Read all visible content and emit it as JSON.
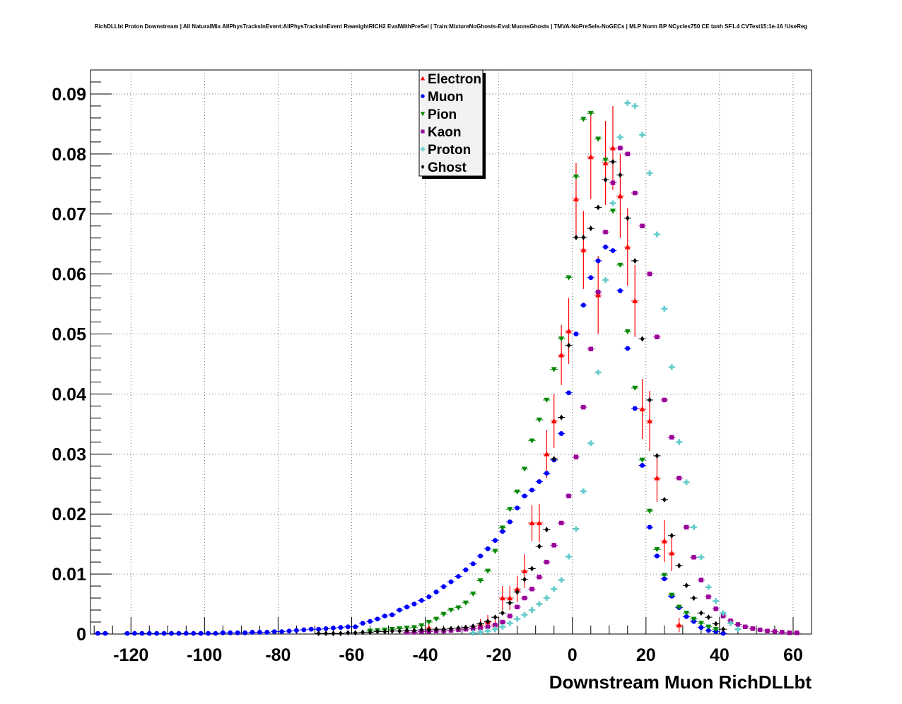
{
  "figure": {
    "title": "RichDLLbt Proton Downstream | All NaturalMix AllPhysTracksInEvent:AllPhysTracksInEvent ReweightRICH2 EvalWithPreSel | Train:MixtureNoGhosts-Eval:MuonsGhosts | TMVA-NoPreSels-NoGECs | MLP Norm BP NCycles750 CE tanh SF1.4 CVTest15:1e-16 !UseReg"
  },
  "chart_data": {
    "type": "scatter",
    "title": "RichDLLbt Proton Downstream | All NaturalMix AllPhysTracksInEvent:AllPhysTracksInEvent ReweightRICH2 EvalWithPreSel | Train:MixtureNoGhosts-Eval:MuonsGhosts | TMVA-NoPreSels-NoGECs | MLP Norm BP NCycles750 CE tanh SF1.4 CVTest15:1e-16 !UseReg",
    "xlabel": "Downstream Muon RichDLLbt",
    "ylabel": "",
    "xlim": [
      -131,
      65
    ],
    "ylim": [
      0,
      0.094
    ],
    "xticks": [
      -120,
      -100,
      -80,
      -60,
      -40,
      -20,
      0,
      20,
      40,
      60
    ],
    "xtick_labels": [
      "-120",
      "-100",
      "-80",
      "-60",
      "-40",
      "-20",
      "0",
      "20",
      "40",
      "60"
    ],
    "yticks": [
      0,
      0.01,
      0.02,
      0.03,
      0.04,
      0.05,
      0.06,
      0.07,
      0.08,
      0.09
    ],
    "ytick_labels": [
      "0",
      "0.01",
      "0.02",
      "0.03",
      "0.04",
      "0.05",
      "0.06",
      "0.07",
      "0.08",
      "0.09"
    ],
    "grid": true,
    "legend_position": "top-center",
    "series": [
      {
        "name": "Electron",
        "color": "#ff0000",
        "marker": "triangle-up",
        "x": [
          -39,
          -25,
          -23,
          -21,
          -19,
          -17,
          -15,
          -13,
          -11,
          -9,
          -7,
          -5,
          -3,
          -1,
          1,
          3,
          5,
          7,
          9,
          11,
          13,
          15,
          17,
          19,
          21,
          23,
          25,
          27,
          29
        ],
        "y": [
          0.001,
          0.0015,
          0.002,
          0.0015,
          0.006,
          0.006,
          0.0075,
          0.0105,
          0.0185,
          0.0185,
          0.03,
          0.0355,
          0.0465,
          0.0505,
          0.0725,
          0.064,
          0.0795,
          0.0565,
          0.0785,
          0.081,
          0.073,
          0.0645,
          0.0555,
          0.0375,
          0.0355,
          0.026,
          0.0155,
          0.0135,
          0.0015
        ],
        "err": [
          0.0008,
          0.001,
          0.0012,
          0.0012,
          0.002,
          0.002,
          0.0022,
          0.0028,
          0.003,
          0.0032,
          0.004,
          0.0045,
          0.005,
          0.0055,
          0.006,
          0.0065,
          0.007,
          0.0065,
          0.007,
          0.007,
          0.007,
          0.0065,
          0.006,
          0.005,
          0.005,
          0.004,
          0.0035,
          0.003,
          0.0012
        ]
      },
      {
        "name": "Muon",
        "color": "#0000ff",
        "marker": "circle",
        "x": [
          -129,
          -127,
          -121,
          -119,
          -117,
          -115,
          -113,
          -111,
          -109,
          -107,
          -105,
          -103,
          -101,
          -99,
          -97,
          -95,
          -93,
          -91,
          -89,
          -87,
          -85,
          -83,
          -81,
          -79,
          -77,
          -75,
          -73,
          -71,
          -69,
          -67,
          -65,
          -63,
          -61,
          -59,
          -57,
          -55,
          -53,
          -51,
          -49,
          -47,
          -45,
          -43,
          -41,
          -39,
          -37,
          -35,
          -33,
          -31,
          -29,
          -27,
          -25,
          -23,
          -21,
          -19,
          -17,
          -15,
          -13,
          -11,
          -9,
          -7,
          -5,
          -3,
          -1,
          1,
          3,
          5,
          7,
          9,
          11,
          13,
          15,
          17,
          19,
          21,
          23,
          25,
          27,
          29,
          31,
          33,
          35,
          37,
          39,
          41
        ],
        "y": [
          0.0001,
          0.0001,
          0.0001,
          0.0001,
          0.0001,
          0.0001,
          0.0001,
          0.0001,
          0.0001,
          0.0001,
          0.0001,
          0.0001,
          0.0001,
          0.0001,
          0.0001,
          0.0002,
          0.0002,
          0.0002,
          0.0002,
          0.0003,
          0.0003,
          0.0003,
          0.0004,
          0.0004,
          0.0005,
          0.0006,
          0.0007,
          0.0008,
          0.0008,
          0.0009,
          0.001,
          0.0011,
          0.0012,
          0.0012,
          0.0018,
          0.0021,
          0.0025,
          0.003,
          0.0032,
          0.004,
          0.0045,
          0.005,
          0.0056,
          0.0062,
          0.007,
          0.0079,
          0.0087,
          0.0096,
          0.0107,
          0.0117,
          0.013,
          0.0142,
          0.0156,
          0.0171,
          0.0187,
          0.021,
          0.023,
          0.024,
          0.0254,
          0.0268,
          0.029,
          0.0334,
          0.0402,
          0.05,
          0.0548,
          0.0594,
          0.0622,
          0.0645,
          0.0639,
          0.0572,
          0.0476,
          0.0376,
          0.0281,
          0.0178,
          0.013,
          0.0092,
          0.0063,
          0.0044,
          0.0029,
          0.0021,
          0.0011,
          0.0006,
          0.0004,
          0.0001
        ]
      },
      {
        "name": "Pion",
        "color": "#008800",
        "marker": "triangle-down",
        "x": [
          -55,
          -53,
          -51,
          -49,
          -47,
          -45,
          -43,
          -41,
          -39,
          -37,
          -35,
          -33,
          -31,
          -29,
          -27,
          -25,
          -23,
          -21,
          -19,
          -17,
          -15,
          -13,
          -11,
          -9,
          -7,
          -5,
          -3,
          -1,
          1,
          3,
          5,
          7,
          9,
          11,
          13,
          15,
          17,
          19,
          21,
          23,
          25,
          27,
          29,
          31,
          33,
          35,
          37,
          39
        ],
        "y": [
          0.0005,
          0.0006,
          0.0007,
          0.0008,
          0.0009,
          0.001,
          0.0011,
          0.0014,
          0.002,
          0.0025,
          0.0033,
          0.004,
          0.0044,
          0.0052,
          0.0067,
          0.0089,
          0.0105,
          0.0138,
          0.0177,
          0.0208,
          0.0237,
          0.0275,
          0.0322,
          0.0357,
          0.039,
          0.0441,
          0.0492,
          0.0594,
          0.0762,
          0.0858,
          0.0868,
          0.0825,
          0.079,
          0.0705,
          0.0615,
          0.0504,
          0.041,
          0.029,
          0.0205,
          0.0141,
          0.0098,
          0.0065,
          0.0045,
          0.0035,
          0.0025,
          0.0018,
          0.0012,
          0.0008
        ]
      },
      {
        "name": "Kaon",
        "color": "#990099",
        "marker": "square",
        "x": [
          -45,
          -43,
          -41,
          -39,
          -37,
          -35,
          -33,
          -31,
          -29,
          -27,
          -25,
          -23,
          -21,
          -19,
          -17,
          -15,
          -13,
          -11,
          -9,
          -7,
          -5,
          -3,
          -1,
          1,
          3,
          5,
          7,
          9,
          11,
          13,
          15,
          17,
          19,
          21,
          23,
          25,
          27,
          29,
          31,
          33,
          35,
          37,
          39,
          41,
          43,
          45,
          47,
          49,
          51,
          53,
          55,
          57,
          59,
          61
        ],
        "y": [
          0.0003,
          0.0003,
          0.0004,
          0.0004,
          0.0005,
          0.0005,
          0.0006,
          0.0007,
          0.0008,
          0.0009,
          0.001,
          0.0012,
          0.0015,
          0.002,
          0.003,
          0.0045,
          0.006,
          0.0075,
          0.0095,
          0.012,
          0.0148,
          0.0185,
          0.023,
          0.0295,
          0.0378,
          0.0475,
          0.057,
          0.067,
          0.0752,
          0.081,
          0.08,
          0.0735,
          0.068,
          0.06,
          0.0495,
          0.039,
          0.0328,
          0.026,
          0.0178,
          0.0128,
          0.009,
          0.0062,
          0.0042,
          0.003,
          0.0022,
          0.0016,
          0.0012,
          0.0009,
          0.0007,
          0.0005,
          0.0004,
          0.0003,
          0.0002,
          0.0002
        ]
      },
      {
        "name": "Proton",
        "color": "#66cccc",
        "marker": "cross",
        "x": [
          -27,
          -25,
          -23,
          -21,
          -19,
          -17,
          -15,
          -13,
          -11,
          -9,
          -7,
          -5,
          -3,
          -1,
          1,
          3,
          5,
          7,
          9,
          11,
          13,
          15,
          17,
          19,
          21,
          23,
          25,
          27,
          29,
          31,
          33,
          35,
          37,
          39,
          41,
          43,
          45
        ],
        "y": [
          0.0002,
          0.0003,
          0.0005,
          0.0008,
          0.0012,
          0.0018,
          0.0025,
          0.0032,
          0.004,
          0.005,
          0.006,
          0.0075,
          0.009,
          0.0129,
          0.0175,
          0.0238,
          0.0318,
          0.0436,
          0.059,
          0.0718,
          0.0828,
          0.0885,
          0.088,
          0.0832,
          0.0768,
          0.0666,
          0.0542,
          0.0445,
          0.032,
          0.0253,
          0.0178,
          0.0128,
          0.0078,
          0.0055,
          0.0035,
          0.0018,
          0.0008
        ]
      },
      {
        "name": "Ghost",
        "color": "#000000",
        "marker": "diamond",
        "x": [
          -69,
          -67,
          -65,
          -63,
          -61,
          -59,
          -57,
          -55,
          -53,
          -51,
          -49,
          -47,
          -45,
          -43,
          -41,
          -39,
          -37,
          -35,
          -33,
          -31,
          -29,
          -27,
          -25,
          -23,
          -21,
          -19,
          -17,
          -15,
          -13,
          -11,
          -9,
          -7,
          -5,
          -3,
          -1,
          1,
          3,
          5,
          7,
          9,
          11,
          13,
          15,
          17,
          19,
          21,
          23,
          25,
          27,
          29,
          31,
          33,
          35,
          37,
          39,
          41
        ],
        "y": [
          0.0001,
          0.0001,
          0.0001,
          0.0001,
          0.0002,
          0.0002,
          0.0003,
          0.0003,
          0.0004,
          0.0004,
          0.0005,
          0.0005,
          0.0006,
          0.0006,
          0.0007,
          0.0007,
          0.0008,
          0.0008,
          0.0009,
          0.001,
          0.0011,
          0.0013,
          0.0017,
          0.0021,
          0.0028,
          0.0035,
          0.0052,
          0.007,
          0.0091,
          0.0109,
          0.0146,
          0.0174,
          0.0292,
          0.0361,
          0.0481,
          0.0661,
          0.0661,
          0.0676,
          0.0711,
          0.0757,
          0.0787,
          0.0765,
          0.0693,
          0.0622,
          0.0492,
          0.039,
          0.0297,
          0.0224,
          0.0164,
          0.0114,
          0.0081,
          0.006,
          0.0035,
          0.0028,
          0.0017,
          0.0008
        ]
      }
    ]
  }
}
